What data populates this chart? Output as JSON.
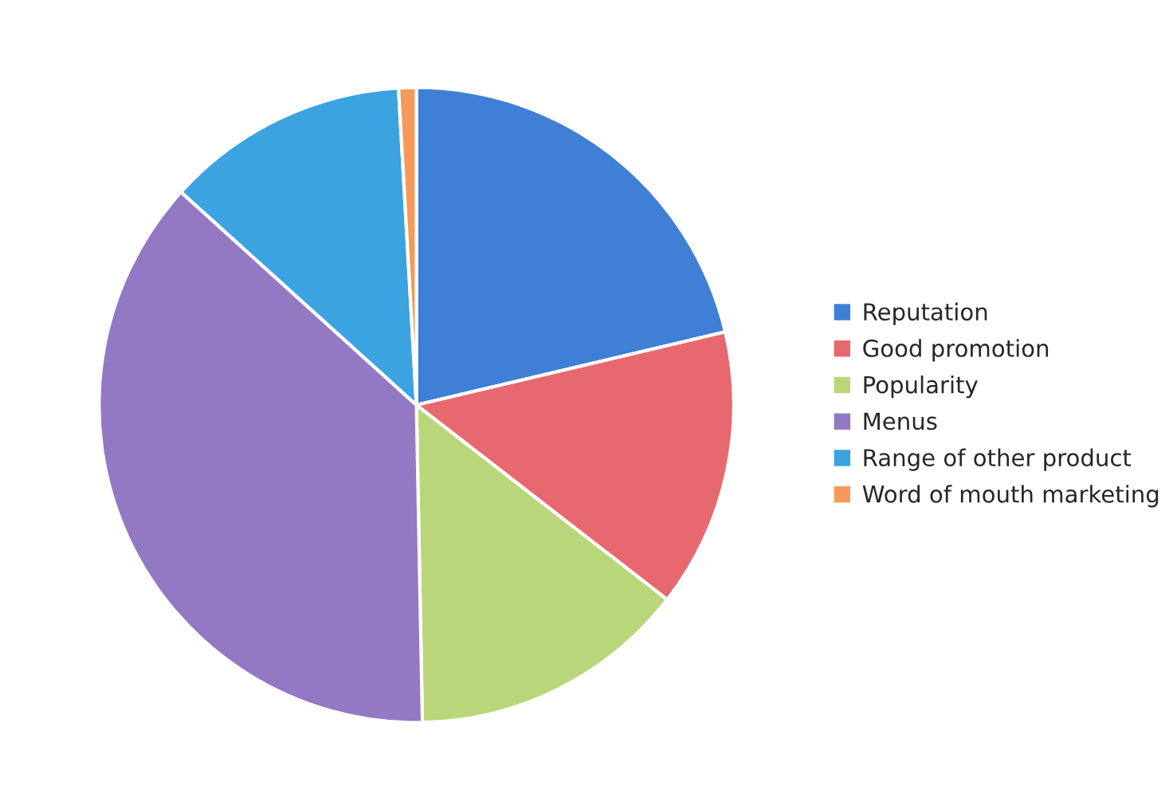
{
  "chart_data": {
    "type": "pie",
    "categories": [
      "Reputation",
      "Good promotion",
      "Popularity",
      "Menus",
      "Range of other product",
      "Word of mouth marketing"
    ],
    "values": [
      21.3,
      14.2,
      14.2,
      37.0,
      12.4,
      0.9
    ],
    "colors": [
      "#3f7fd6",
      "#e8686f",
      "#b9d77a",
      "#9379c4",
      "#3aa3e0",
      "#f59a5a"
    ],
    "legend": "right"
  }
}
